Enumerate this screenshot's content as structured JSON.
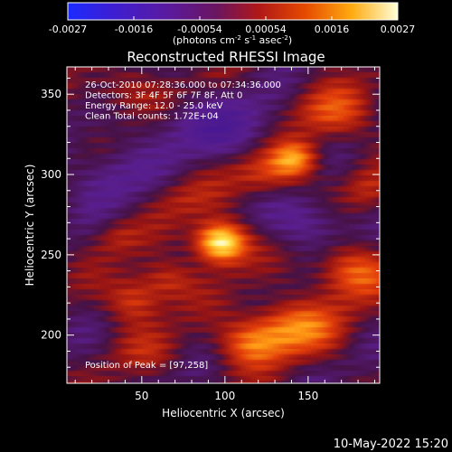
{
  "chart_data": {
    "type": "heatmap",
    "title": "Reconstructed RHESSI Image",
    "xlabel": "Heliocentric X (arcsec)",
    "ylabel": "Heliocentric Y (arcsec)",
    "xlim": [
      5,
      193
    ],
    "ylim": [
      170,
      367
    ],
    "xticks": [
      50,
      100,
      150
    ],
    "yticks": [
      200,
      250,
      300,
      350
    ],
    "colorbar": {
      "min": -0.0027,
      "max": 0.0027,
      "ticks": [
        "-0.0027",
        "-0.0016",
        "-0.00054",
        "0.00054",
        "0.0016",
        "0.0027"
      ],
      "label_main": "(photons cm",
      "label_exp1": "-2",
      "label_mid": " s",
      "label_exp2": "-1",
      "label_post": " asec",
      "label_exp3": "-2",
      "label_end": ")"
    },
    "annotations": [
      "26-Oct-2010 07:28:36.000 to 07:34:36.000",
      "Detectors: 3F 4F 5F 6F 7F 8F, Att 0",
      "Energy Range: 12.0 - 25.0 keV",
      "Clean     Total counts: 1.72E+04"
    ],
    "peak_label": "Position of Peak = [97,258]",
    "sources": [
      {
        "x": 97,
        "y": 258,
        "amp": 1.0,
        "sx": 11,
        "sy": 9
      },
      {
        "x": 142,
        "y": 310,
        "amp": 0.58,
        "sx": 10,
        "sy": 8
      },
      {
        "x": 125,
        "y": 300,
        "amp": 0.35,
        "sx": 14,
        "sy": 10
      },
      {
        "x": 165,
        "y": 338,
        "amp": 0.38,
        "sx": 18,
        "sy": 12
      },
      {
        "x": 40,
        "y": 352,
        "amp": 0.25,
        "sx": 18,
        "sy": 10
      },
      {
        "x": 75,
        "y": 285,
        "amp": 0.18,
        "sx": 16,
        "sy": 10
      },
      {
        "x": 140,
        "y": 205,
        "amp": 0.52,
        "sx": 20,
        "sy": 12
      },
      {
        "x": 175,
        "y": 240,
        "amp": 0.48,
        "sx": 16,
        "sy": 12
      },
      {
        "x": 115,
        "y": 195,
        "amp": 0.42,
        "sx": 14,
        "sy": 10
      },
      {
        "x": 45,
        "y": 222,
        "amp": 0.4,
        "sx": 12,
        "sy": 10
      },
      {
        "x": 65,
        "y": 235,
        "amp": 0.32,
        "sx": 12,
        "sy": 9
      },
      {
        "x": 35,
        "y": 262,
        "amp": 0.2,
        "sx": 10,
        "sy": 8
      },
      {
        "x": 55,
        "y": 190,
        "amp": 0.15,
        "sx": 16,
        "sy": 10
      },
      {
        "x": 185,
        "y": 290,
        "amp": 0.2,
        "sx": 10,
        "sy": 10
      },
      {
        "x": 95,
        "y": 330,
        "amp": -0.3,
        "sx": 30,
        "sy": 14
      },
      {
        "x": 150,
        "y": 270,
        "amp": -0.3,
        "sx": 18,
        "sy": 12
      },
      {
        "x": 30,
        "y": 300,
        "amp": -0.25,
        "sx": 18,
        "sy": 14
      }
    ],
    "band_slope": 0.75,
    "colormap": "RHESSI red-temperature (blue-purple-red-orange-yellow-white)"
  },
  "timestamp": "10-May-2022 15:20"
}
